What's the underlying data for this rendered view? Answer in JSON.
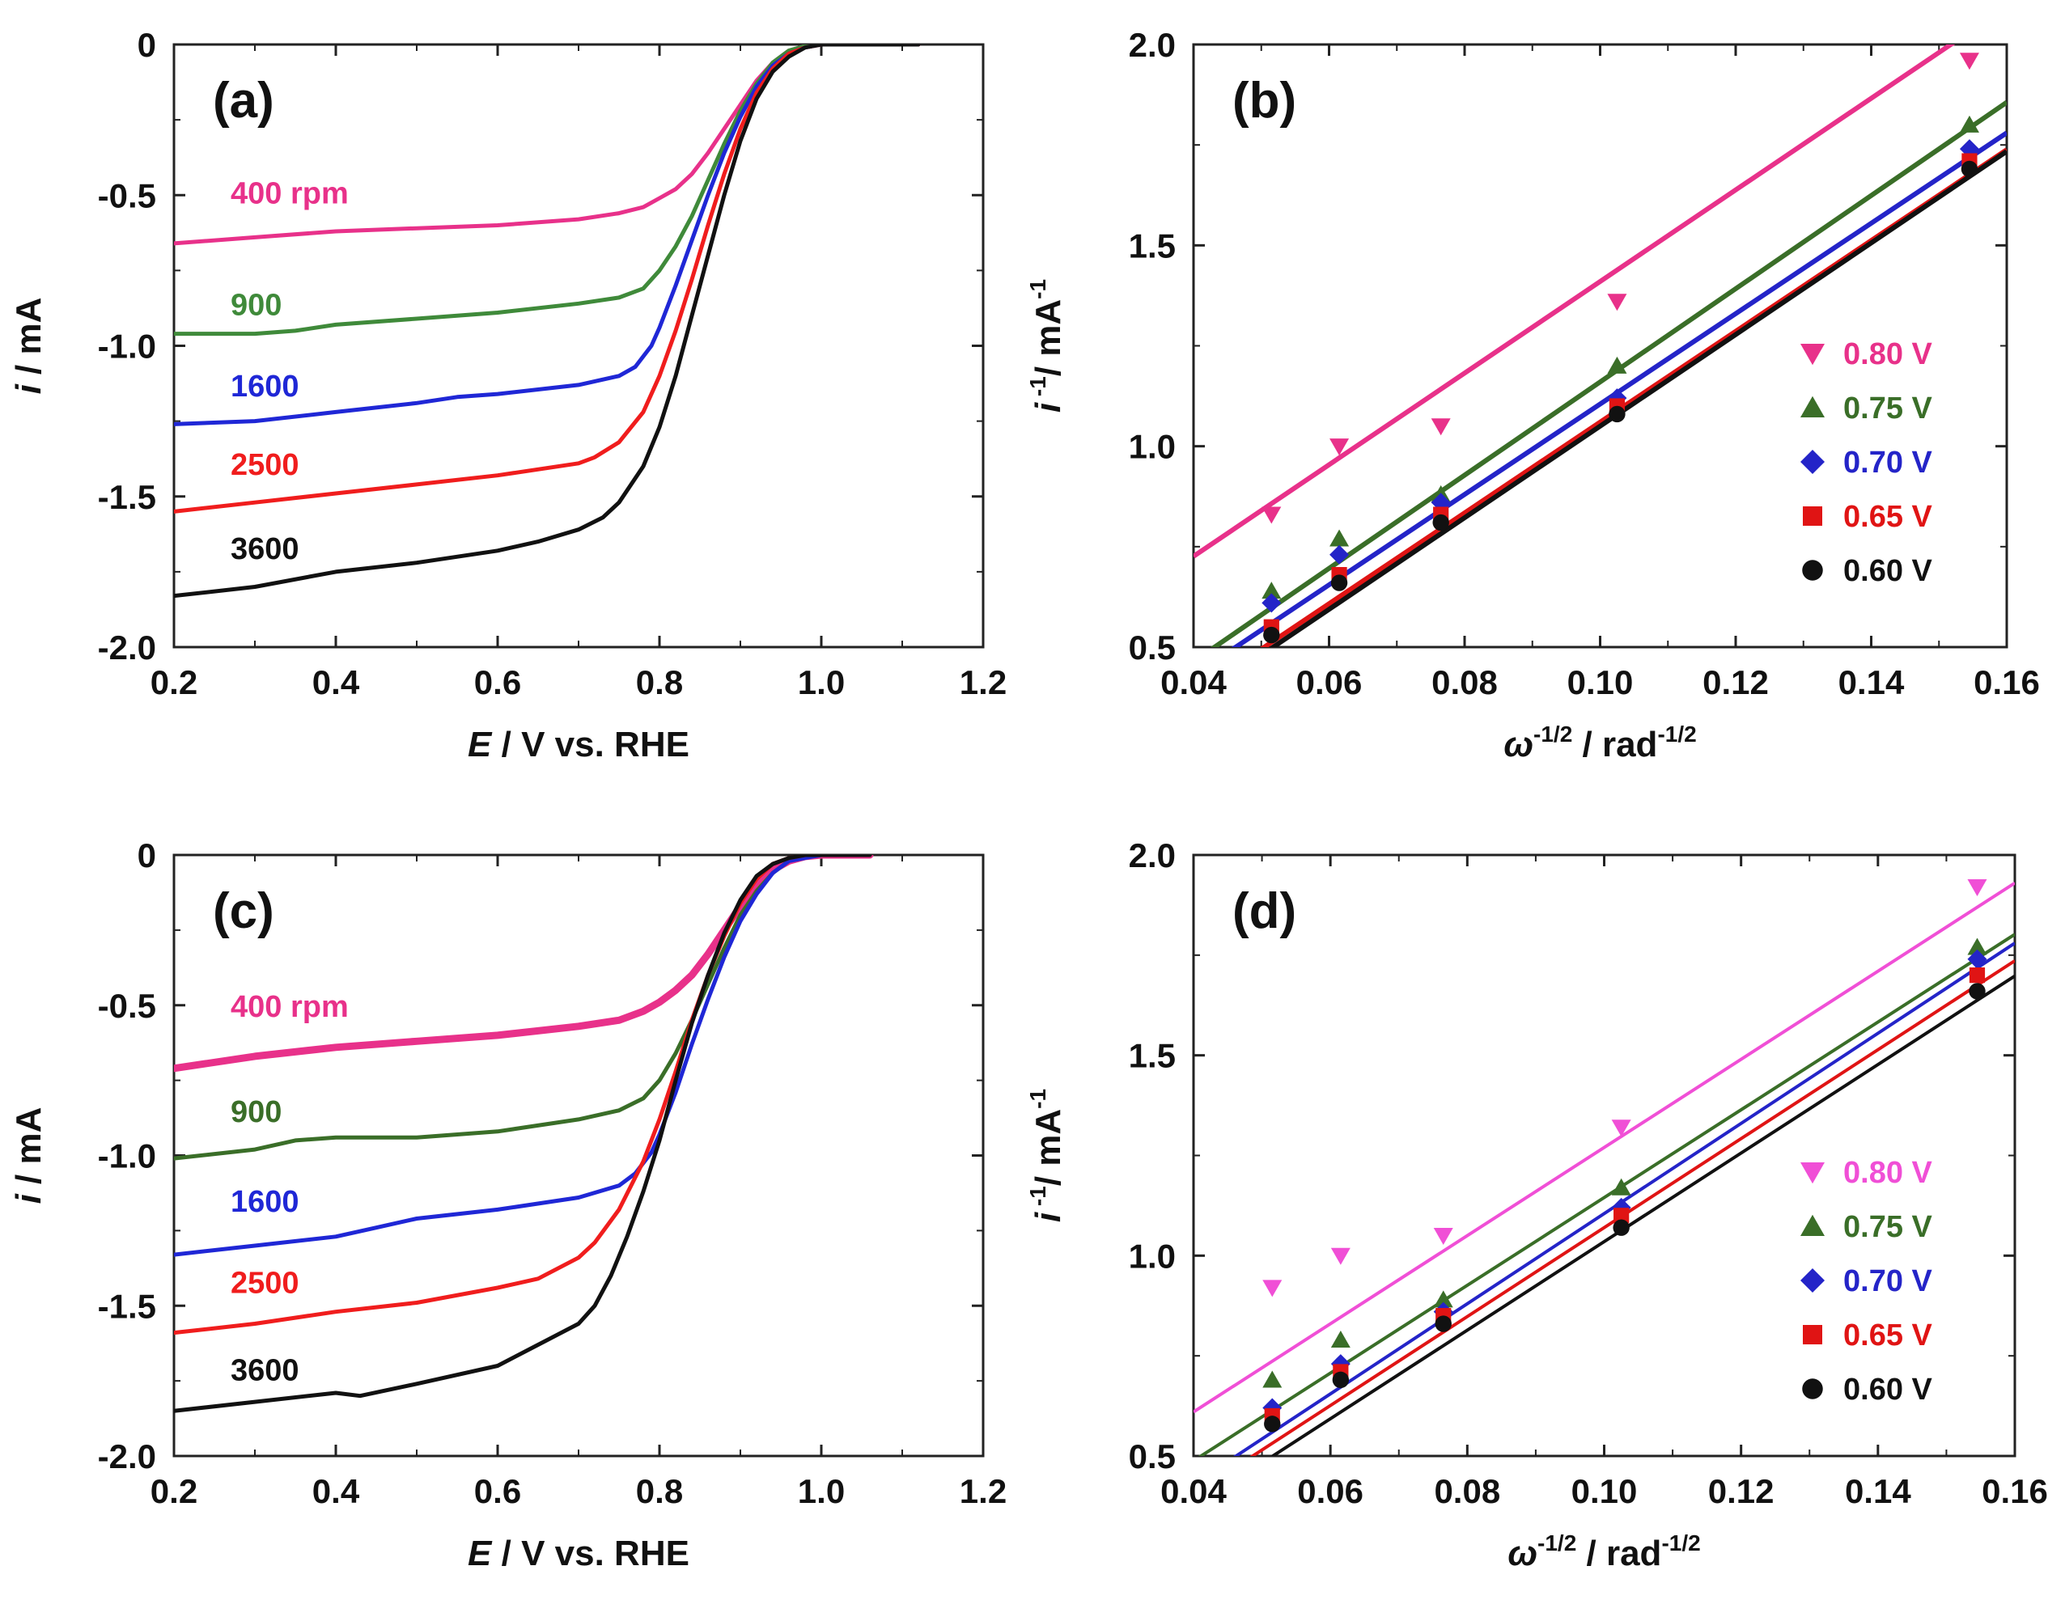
{
  "chart_data": [
    {
      "id": "a",
      "type": "line",
      "panel_label": "(a)",
      "xlabel_italic": "E",
      "xlabel_rest": " / V vs. RHE",
      "ylabel_italic": "i",
      "ylabel_rest": " / mA",
      "xlim": [
        0.2,
        1.2
      ],
      "ylim": [
        -2.0,
        0
      ],
      "xticks": [
        0.2,
        0.4,
        0.6,
        0.8,
        1.0,
        1.2
      ],
      "xtick_labels": [
        "0.2",
        "0.4",
        "0.6",
        "0.8",
        "1.0",
        "1.2"
      ],
      "yticks": [
        0,
        -0.5,
        -1.0,
        -1.5,
        -2.0
      ],
      "ytick_labels": [
        "0",
        "-0.5",
        "-1.0",
        "-1.5",
        "-2.0"
      ],
      "series": [
        {
          "name": "400 rpm",
          "label": "400 rpm",
          "color": "#e8318a",
          "label_x": 0.27,
          "label_y": -0.49,
          "x": [
            0.2,
            0.3,
            0.4,
            0.5,
            0.6,
            0.7,
            0.75,
            0.78,
            0.8,
            0.82,
            0.84,
            0.86,
            0.88,
            0.9,
            0.92,
            0.94,
            0.96,
            0.98,
            1.0,
            1.05,
            1.12
          ],
          "y": [
            -0.66,
            -0.64,
            -0.62,
            -0.61,
            -0.6,
            -0.58,
            -0.56,
            -0.54,
            -0.51,
            -0.48,
            -0.43,
            -0.36,
            -0.28,
            -0.2,
            -0.12,
            -0.06,
            -0.02,
            -0.005,
            0,
            0,
            0
          ]
        },
        {
          "name": "900",
          "label": "900",
          "color": "#3f8a3a",
          "label_x": 0.27,
          "label_y": -0.86,
          "x": [
            0.2,
            0.3,
            0.35,
            0.4,
            0.5,
            0.6,
            0.7,
            0.75,
            0.78,
            0.8,
            0.82,
            0.84,
            0.86,
            0.88,
            0.9,
            0.92,
            0.94,
            0.96,
            0.98,
            1.0,
            1.12
          ],
          "y": [
            -0.96,
            -0.96,
            -0.95,
            -0.93,
            -0.91,
            -0.89,
            -0.86,
            -0.84,
            -0.81,
            -0.75,
            -0.67,
            -0.57,
            -0.45,
            -0.33,
            -0.22,
            -0.13,
            -0.06,
            -0.02,
            -0.005,
            0,
            0
          ]
        },
        {
          "name": "1600",
          "label": "1600",
          "color": "#1f27d6",
          "label_x": 0.27,
          "label_y": -1.13,
          "x": [
            0.2,
            0.3,
            0.4,
            0.5,
            0.55,
            0.6,
            0.7,
            0.75,
            0.77,
            0.79,
            0.8,
            0.82,
            0.84,
            0.86,
            0.88,
            0.9,
            0.92,
            0.94,
            0.96,
            0.98,
            1.0,
            1.12
          ],
          "y": [
            -1.26,
            -1.25,
            -1.22,
            -1.19,
            -1.17,
            -1.16,
            -1.13,
            -1.1,
            -1.07,
            -1.0,
            -0.94,
            -0.8,
            -0.65,
            -0.5,
            -0.36,
            -0.24,
            -0.14,
            -0.07,
            -0.03,
            -0.01,
            0,
            0
          ]
        },
        {
          "name": "2500",
          "label": "2500",
          "color": "#f01d1d",
          "label_x": 0.27,
          "label_y": -1.39,
          "x": [
            0.2,
            0.3,
            0.4,
            0.5,
            0.6,
            0.7,
            0.72,
            0.75,
            0.78,
            0.8,
            0.82,
            0.84,
            0.86,
            0.88,
            0.9,
            0.92,
            0.94,
            0.96,
            0.98,
            1.0,
            1.12
          ],
          "y": [
            -1.55,
            -1.52,
            -1.49,
            -1.46,
            -1.43,
            -1.39,
            -1.37,
            -1.32,
            -1.22,
            -1.1,
            -0.95,
            -0.78,
            -0.6,
            -0.43,
            -0.28,
            -0.16,
            -0.08,
            -0.03,
            -0.01,
            0,
            0
          ]
        },
        {
          "name": "3600",
          "label": "3600",
          "color": "#111111",
          "label_x": 0.27,
          "label_y": -1.67,
          "x": [
            0.2,
            0.3,
            0.4,
            0.5,
            0.6,
            0.65,
            0.7,
            0.73,
            0.75,
            0.78,
            0.8,
            0.82,
            0.84,
            0.86,
            0.88,
            0.9,
            0.92,
            0.94,
            0.96,
            0.98,
            1.0,
            1.12
          ],
          "y": [
            -1.83,
            -1.8,
            -1.75,
            -1.72,
            -1.68,
            -1.65,
            -1.61,
            -1.57,
            -1.52,
            -1.4,
            -1.27,
            -1.1,
            -0.9,
            -0.7,
            -0.5,
            -0.32,
            -0.18,
            -0.09,
            -0.04,
            -0.01,
            0,
            0
          ]
        }
      ]
    },
    {
      "id": "b",
      "type": "scatter",
      "panel_label": "(b)",
      "xlabel_italic": "ω",
      "xlabel_sup": "-1/2",
      "xlabel_rest": " / rad",
      "xlabel_sup2": "-1/2",
      "ylabel_italic": "i",
      "ylabel_sup": " -1",
      "ylabel_rest": "/ mA",
      "ylabel_sup2": "-1",
      "xlim": [
        0.04,
        0.16
      ],
      "ylim": [
        0.5,
        2.0
      ],
      "xticks": [
        0.04,
        0.06,
        0.08,
        0.1,
        0.12,
        0.14,
        0.16
      ],
      "xtick_labels": [
        "0.04",
        "0.06",
        "0.08",
        "0.10",
        "0.12",
        "0.14",
        "0.16"
      ],
      "yticks": [
        0.5,
        1.0,
        1.5,
        2.0
      ],
      "ytick_labels": [
        "0.5",
        "1.0",
        "1.5",
        "2.0"
      ],
      "fit_stroke": 6,
      "series": [
        {
          "name": "0.80 V",
          "color": "#e8318a",
          "marker": "triangle-down",
          "x": [
            0.0515,
            0.0615,
            0.0765,
            0.1025,
            0.1545
          ],
          "y": [
            0.83,
            1.0,
            1.05,
            1.36,
            1.96
          ],
          "fit_intercept": 0.27,
          "fit_slope": 11.4
        },
        {
          "name": "0.75 V",
          "color": "#3a6e28",
          "marker": "triangle-up",
          "x": [
            0.0515,
            0.0615,
            0.0765,
            0.1025,
            0.1545
          ],
          "y": [
            0.64,
            0.77,
            0.88,
            1.2,
            1.8
          ],
          "fit_intercept": 0.0,
          "fit_slope": 11.6
        },
        {
          "name": "0.70 V",
          "color": "#2424c8",
          "marker": "diamond",
          "x": [
            0.0515,
            0.0615,
            0.0765,
            0.1025,
            0.1545
          ],
          "y": [
            0.61,
            0.73,
            0.86,
            1.12,
            1.74
          ],
          "fit_intercept": -0.02,
          "fit_slope": 11.25
        },
        {
          "name": "0.65 V",
          "color": "#e01414",
          "marker": "square",
          "x": [
            0.0515,
            0.0615,
            0.0765,
            0.1025,
            0.1545
          ],
          "y": [
            0.55,
            0.68,
            0.83,
            1.1,
            1.71
          ],
          "fit_intercept": -0.07,
          "fit_slope": 11.3
        },
        {
          "name": "0.60 V",
          "color": "#111111",
          "marker": "circle",
          "x": [
            0.0515,
            0.0615,
            0.0765,
            0.1025,
            0.1545
          ],
          "y": [
            0.53,
            0.66,
            0.81,
            1.08,
            1.69
          ],
          "fit_intercept": -0.09,
          "fit_slope": 11.4
        }
      ]
    },
    {
      "id": "c",
      "type": "line",
      "panel_label": "(c)",
      "xlabel_italic": "E",
      "xlabel_rest": " / V vs. RHE",
      "ylabel_italic": "i",
      "ylabel_rest": " / mA",
      "xlim": [
        0.2,
        1.2
      ],
      "ylim": [
        -2.0,
        0
      ],
      "xticks": [
        0.2,
        0.4,
        0.6,
        0.8,
        1.0,
        1.2
      ],
      "xtick_labels": [
        "0.2",
        "0.4",
        "0.6",
        "0.8",
        "1.0",
        "1.2"
      ],
      "yticks": [
        0,
        -0.5,
        -1.0,
        -1.5,
        -2.0
      ],
      "ytick_labels": [
        "0",
        "-0.5",
        "-1.0",
        "-1.5",
        "-2.0"
      ],
      "series": [
        {
          "name": "400 rpm",
          "label": "400 rpm",
          "color": "#e8318a",
          "label_x": 0.27,
          "label_y": -0.5,
          "stroke": 9,
          "x": [
            0.2,
            0.3,
            0.4,
            0.5,
            0.6,
            0.7,
            0.75,
            0.78,
            0.8,
            0.82,
            0.84,
            0.86,
            0.88,
            0.9,
            0.92,
            0.94,
            0.96,
            0.98,
            1.0,
            1.06
          ],
          "y": [
            -0.71,
            -0.67,
            -0.64,
            -0.62,
            -0.6,
            -0.57,
            -0.55,
            -0.52,
            -0.49,
            -0.45,
            -0.4,
            -0.33,
            -0.25,
            -0.17,
            -0.1,
            -0.05,
            -0.02,
            -0.005,
            0,
            0
          ]
        },
        {
          "name": "900",
          "label": "900",
          "color": "#3a6e28",
          "label_x": 0.27,
          "label_y": -0.85,
          "x": [
            0.2,
            0.3,
            0.35,
            0.4,
            0.5,
            0.6,
            0.7,
            0.75,
            0.78,
            0.8,
            0.82,
            0.84,
            0.86,
            0.88,
            0.9,
            0.92,
            0.94,
            0.96,
            0.98,
            1.0,
            1.06
          ],
          "y": [
            -1.01,
            -0.98,
            -0.95,
            -0.94,
            -0.94,
            -0.92,
            -0.88,
            -0.85,
            -0.81,
            -0.75,
            -0.66,
            -0.55,
            -0.43,
            -0.31,
            -0.2,
            -0.12,
            -0.06,
            -0.02,
            -0.005,
            0,
            0
          ]
        },
        {
          "name": "1600",
          "label": "1600",
          "color": "#1f27d6",
          "label_x": 0.27,
          "label_y": -1.15,
          "x": [
            0.2,
            0.3,
            0.4,
            0.45,
            0.5,
            0.6,
            0.7,
            0.75,
            0.77,
            0.79,
            0.8,
            0.82,
            0.84,
            0.86,
            0.88,
            0.9,
            0.92,
            0.94,
            0.96,
            0.98,
            1.0,
            1.06
          ],
          "y": [
            -1.33,
            -1.3,
            -1.27,
            -1.24,
            -1.21,
            -1.18,
            -1.14,
            -1.1,
            -1.06,
            -0.99,
            -0.93,
            -0.79,
            -0.63,
            -0.48,
            -0.34,
            -0.22,
            -0.13,
            -0.06,
            -0.02,
            -0.01,
            0,
            0
          ]
        },
        {
          "name": "2500",
          "label": "2500",
          "color": "#f01d1d",
          "label_x": 0.27,
          "label_y": -1.42,
          "x": [
            0.2,
            0.3,
            0.4,
            0.5,
            0.6,
            0.65,
            0.7,
            0.72,
            0.75,
            0.78,
            0.8,
            0.82,
            0.84,
            0.86,
            0.88,
            0.9,
            0.92,
            0.94,
            0.96,
            0.98,
            1.0,
            1.06
          ],
          "y": [
            -1.59,
            -1.56,
            -1.52,
            -1.49,
            -1.44,
            -1.41,
            -1.34,
            -1.29,
            -1.18,
            -1.02,
            -0.88,
            -0.72,
            -0.55,
            -0.4,
            -0.27,
            -0.16,
            -0.08,
            -0.03,
            -0.01,
            0,
            0,
            0
          ]
        },
        {
          "name": "3600",
          "label": "3600",
          "color": "#111111",
          "label_x": 0.27,
          "label_y": -1.71,
          "x": [
            0.2,
            0.3,
            0.4,
            0.43,
            0.5,
            0.6,
            0.65,
            0.7,
            0.72,
            0.74,
            0.76,
            0.78,
            0.8,
            0.82,
            0.84,
            0.86,
            0.88,
            0.9,
            0.92,
            0.94,
            0.96,
            0.98,
            1.0,
            1.06
          ],
          "y": [
            -1.85,
            -1.82,
            -1.79,
            -1.8,
            -1.76,
            -1.7,
            -1.63,
            -1.56,
            -1.5,
            -1.4,
            -1.27,
            -1.12,
            -0.95,
            -0.75,
            -0.56,
            -0.4,
            -0.26,
            -0.15,
            -0.07,
            -0.03,
            -0.01,
            0,
            0,
            0
          ]
        }
      ]
    },
    {
      "id": "d",
      "type": "scatter",
      "panel_label": "(d)",
      "xlabel_italic": "ω",
      "xlabel_sup": "-1/2",
      "xlabel_rest": " / rad",
      "xlabel_sup2": "-1/2",
      "ylabel_italic": "i",
      "ylabel_sup": " -1",
      "ylabel_rest": "/ mA",
      "ylabel_sup2": "-1",
      "xlim": [
        0.04,
        0.16
      ],
      "ylim": [
        0.5,
        2.0
      ],
      "xticks": [
        0.04,
        0.06,
        0.08,
        0.1,
        0.12,
        0.14,
        0.16
      ],
      "xtick_labels": [
        "0.04",
        "0.06",
        "0.08",
        "0.10",
        "0.12",
        "0.14",
        "0.16"
      ],
      "yticks": [
        0.5,
        1.0,
        1.5,
        2.0
      ],
      "ytick_labels": [
        "0.5",
        "1.0",
        "1.5",
        "2.0"
      ],
      "fit_stroke": 4,
      "series": [
        {
          "name": "0.80 V",
          "color": "#f04fd6",
          "marker": "triangle-down",
          "x": [
            0.0515,
            0.0615,
            0.0765,
            0.1025,
            0.1545
          ],
          "y": [
            0.92,
            1.0,
            1.05,
            1.32,
            1.92
          ],
          "fit_intercept": 0.17,
          "fit_slope": 11.0
        },
        {
          "name": "0.75 V",
          "color": "#3a6e28",
          "marker": "triangle-up",
          "x": [
            0.0515,
            0.0615,
            0.0765,
            0.1025,
            0.1545
          ],
          "y": [
            0.69,
            0.79,
            0.89,
            1.17,
            1.77
          ],
          "fit_intercept": 0.05,
          "fit_slope": 10.95
        },
        {
          "name": "0.70 V",
          "color": "#2424c8",
          "marker": "diamond",
          "x": [
            0.0515,
            0.0615,
            0.0765,
            0.1025,
            0.1545
          ],
          "y": [
            0.62,
            0.73,
            0.86,
            1.12,
            1.74
          ],
          "fit_intercept": -0.02,
          "fit_slope": 11.25
        },
        {
          "name": "0.65 V",
          "color": "#e01414",
          "marker": "square",
          "x": [
            0.0515,
            0.0615,
            0.0765,
            0.1025,
            0.1545
          ],
          "y": [
            0.6,
            0.71,
            0.85,
            1.1,
            1.7
          ],
          "fit_intercept": -0.04,
          "fit_slope": 11.1
        },
        {
          "name": "0.60 V",
          "color": "#111111",
          "marker": "circle",
          "x": [
            0.0515,
            0.0615,
            0.0765,
            0.1025,
            0.1545
          ],
          "y": [
            0.58,
            0.69,
            0.83,
            1.07,
            1.66
          ],
          "fit_intercept": -0.07,
          "fit_slope": 11.05
        }
      ]
    }
  ]
}
